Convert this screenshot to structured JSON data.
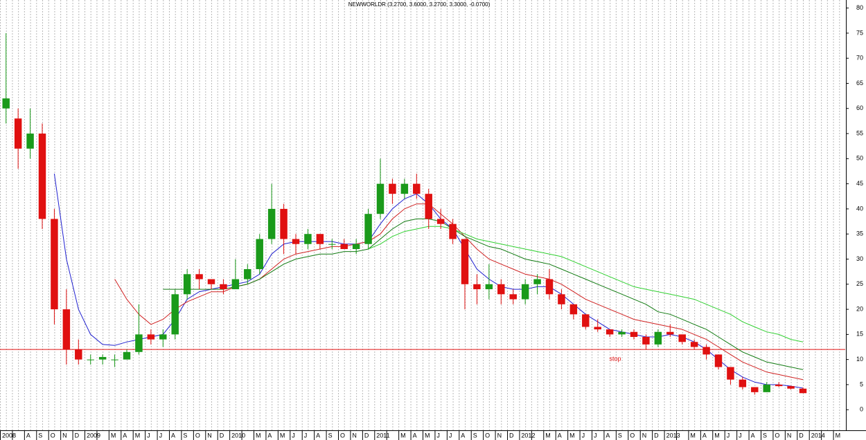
{
  "chart_data": {
    "type": "candlestick",
    "title": "NEWWORLDR (3.2700, 3.6000, 3.2700, 3.3000, -0.0700)",
    "categories": [
      "2008",
      null,
      "A",
      "S",
      "O",
      "N",
      "D",
      "2009",
      null,
      "M",
      "A",
      "M",
      "J",
      "J",
      "A",
      "S",
      "O",
      "N",
      "D",
      "2010",
      null,
      "M",
      "A",
      "M",
      "J",
      "J",
      "A",
      "S",
      "O",
      "N",
      "D",
      "2011",
      null,
      "M",
      "A",
      "M",
      "J",
      "J",
      "A",
      "S",
      "O",
      "N",
      "D",
      "2012",
      null,
      "M",
      "A",
      "M",
      "J",
      "J",
      "A",
      "S",
      "O",
      "N",
      "D",
      "2013",
      null,
      "M",
      "A",
      "M",
      "J",
      "J",
      "A",
      "S",
      "O",
      "N",
      "D",
      "2014",
      null,
      "M"
    ],
    "open": [
      60,
      58,
      52,
      55,
      38,
      20,
      12,
      10,
      10,
      10,
      10,
      11.5,
      15,
      14,
      15,
      23,
      27,
      26,
      25,
      24,
      26,
      28,
      34,
      40,
      34,
      33,
      35,
      33,
      33,
      32,
      33,
      39,
      45,
      43,
      45,
      43,
      38,
      37,
      34,
      25,
      24,
      25,
      23,
      22,
      25,
      26,
      23,
      21,
      19,
      16.5,
      16,
      15,
      15.5,
      14.5,
      13,
      15.5,
      15,
      13.5,
      12.5,
      11,
      8.5,
      6,
      4.5,
      3.5,
      5,
      4.7,
      4.2,
      null,
      null,
      null
    ],
    "high": [
      75,
      60,
      60,
      57,
      40,
      24,
      14,
      11,
      11,
      11,
      12,
      21,
      16,
      16,
      24,
      28,
      28,
      26,
      26,
      30,
      29,
      35,
      45,
      41,
      35,
      36,
      35,
      34,
      34,
      34,
      40,
      50,
      46,
      46,
      47,
      44,
      40,
      38,
      34,
      27,
      29,
      26,
      24,
      26,
      27,
      28,
      24,
      21,
      19,
      18,
      16,
      16,
      16,
      15,
      16,
      17,
      15,
      14,
      13,
      11,
      8.5,
      6.5,
      4.5,
      5.5,
      5.5,
      4.8,
      4.4,
      null,
      null,
      null
    ],
    "low": [
      57,
      48,
      50,
      36,
      17,
      9,
      9,
      9,
      9,
      8.5,
      10,
      11,
      13,
      12.5,
      14,
      22,
      24,
      24,
      23,
      24,
      25,
      27,
      33,
      31,
      31,
      32,
      32,
      32,
      32,
      31,
      32,
      38,
      41,
      42,
      42,
      36,
      36,
      33,
      20,
      21,
      22,
      21,
      21,
      21,
      23,
      22,
      20,
      18,
      16,
      15.5,
      14.5,
      14.5,
      14,
      12,
      12.5,
      14.5,
      13,
      12,
      10,
      8,
      5,
      4,
      3,
      3.5,
      4.5,
      4,
      3.3,
      null,
      null,
      null
    ],
    "close": [
      62,
      52,
      55,
      38,
      20,
      12,
      10,
      10,
      10.5,
      10,
      11.5,
      15,
      14,
      15,
      23,
      27,
      26,
      25,
      24,
      26,
      28,
      34,
      40,
      34,
      33,
      35,
      33,
      33,
      32,
      33,
      39,
      45,
      43,
      45,
      43,
      38,
      37,
      34,
      25,
      24,
      25,
      23,
      22,
      25,
      26,
      23,
      21,
      19,
      16.5,
      16,
      15,
      15.5,
      14.5,
      13,
      15.5,
      15,
      13.5,
      12.5,
      11,
      8.5,
      6,
      4.5,
      3.5,
      5,
      4.7,
      4.2,
      3.3,
      null,
      null,
      null
    ],
    "up_color": "#1a9a1a",
    "down_color": "#e01010",
    "lines": [
      {
        "color": "#2020d0",
        "values": [
          null,
          null,
          null,
          null,
          47,
          30,
          20,
          15,
          13,
          12.8,
          13.5,
          14,
          14.5,
          15,
          18,
          22,
          23.5,
          24,
          24.5,
          25,
          25.5,
          27,
          31,
          33,
          33.5,
          33.5,
          33.5,
          33.5,
          33,
          33,
          33.5,
          37,
          40,
          42,
          43,
          41,
          38,
          36,
          32,
          28,
          26,
          24.5,
          24,
          24,
          24.5,
          24.5,
          23,
          21,
          19,
          17.5,
          16,
          15.5,
          15,
          14.5,
          14.5,
          15,
          14.5,
          13.5,
          12,
          10,
          8,
          6.5,
          5.5,
          5,
          5,
          4.7,
          4.3,
          null,
          null,
          null
        ]
      },
      {
        "color": "#d02020",
        "values": [
          null,
          null,
          null,
          null,
          null,
          null,
          null,
          null,
          null,
          26,
          22,
          19,
          17,
          18,
          20,
          21.5,
          22.5,
          23.5,
          23.5,
          24.5,
          25,
          26,
          28,
          30,
          31,
          31.5,
          32,
          32.5,
          32.5,
          33,
          33.5,
          35,
          38,
          40,
          41,
          41,
          39,
          37,
          34.5,
          32,
          30,
          29,
          28,
          27,
          26.5,
          26,
          25,
          23.5,
          22,
          21,
          20,
          19,
          18,
          17.5,
          17,
          16.5,
          16,
          15,
          14,
          12.5,
          11,
          9.5,
          8.5,
          7.5,
          7,
          6.5,
          6,
          null,
          null,
          null
        ]
      },
      {
        "color": "#107a10",
        "values": [
          null,
          null,
          null,
          null,
          null,
          null,
          null,
          null,
          null,
          null,
          null,
          null,
          null,
          24,
          24,
          24,
          24,
          24,
          24,
          24.5,
          25,
          26,
          27.5,
          29,
          30,
          30.5,
          31,
          31,
          31.5,
          31.5,
          32,
          34,
          36,
          37.5,
          38,
          38,
          37.5,
          36,
          34.5,
          33.5,
          32.5,
          32,
          31,
          30,
          29.5,
          29,
          28,
          27,
          26,
          25,
          24,
          23,
          22,
          21,
          19.5,
          19,
          18,
          17,
          16,
          14.5,
          13,
          11.5,
          10.5,
          9.5,
          9,
          8.5,
          8,
          null,
          null,
          null
        ]
      },
      {
        "color": "#30d030",
        "values": [
          null,
          null,
          null,
          null,
          null,
          null,
          null,
          null,
          null,
          null,
          null,
          null,
          null,
          null,
          null,
          null,
          null,
          null,
          null,
          null,
          null,
          null,
          null,
          null,
          null,
          null,
          null,
          null,
          null,
          null,
          32,
          33,
          34.5,
          35.5,
          36,
          36.5,
          36.5,
          36,
          35,
          34,
          33.5,
          33,
          32.5,
          32,
          31.5,
          31,
          30.5,
          29.5,
          28.5,
          27.5,
          26.5,
          25.5,
          24.5,
          24,
          23.5,
          23,
          22.5,
          22,
          21,
          20,
          19,
          17.5,
          16.5,
          15.5,
          15,
          14,
          13.5,
          null,
          null,
          null
        ]
      }
    ],
    "hline": {
      "value": 12,
      "color": "#e01010",
      "label": "stop"
    },
    "ylim": [
      -4.1,
      81.6
    ],
    "yticks": [
      0,
      5,
      10,
      15,
      20,
      25,
      30,
      35,
      40,
      45,
      50,
      55,
      60,
      65,
      70,
      75,
      80
    ],
    "grid": true
  }
}
